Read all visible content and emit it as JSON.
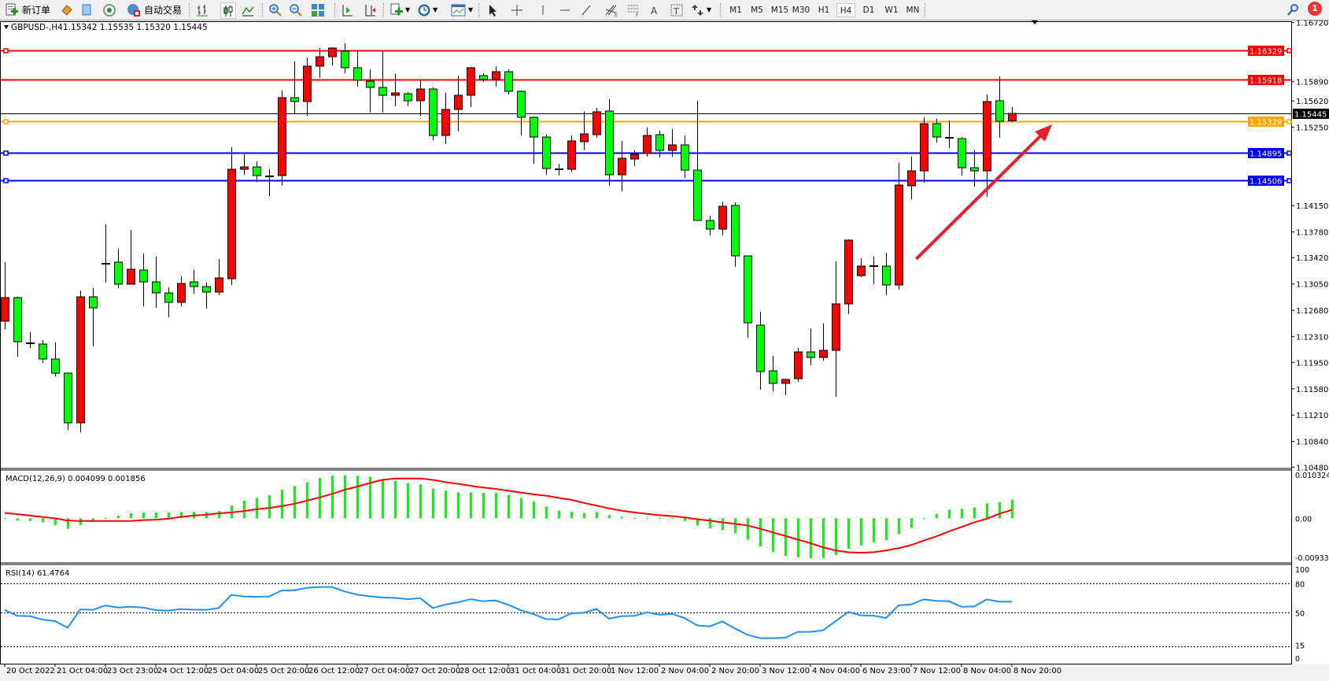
{
  "toolbar": {
    "new_order_label": "新订单",
    "auto_trading_label": "自动交易",
    "timeframes": [
      "M1",
      "M5",
      "M15",
      "M30",
      "H1",
      "H4",
      "D1",
      "W1",
      "MN"
    ],
    "active_timeframe": "H4",
    "notification_count": "1",
    "icons": [
      "new-order",
      "metaeditor",
      "navigator",
      "signals",
      "auto-trading",
      "bar-chart",
      "candlestick-chart",
      "line-chart",
      "zoom-in",
      "zoom-out",
      "tile-windows",
      "auto-scroll",
      "chart-shift",
      "indicators",
      "periods",
      "templates",
      "cursor",
      "crosshair",
      "vertical-line",
      "horizontal-line",
      "trend-line",
      "fibonacci-fan",
      "fibonacci-retracement",
      "text",
      "text-label",
      "arrows",
      "search",
      "notifications"
    ]
  },
  "chart_header": {
    "symbol": "GBPUSD-,H4",
    "ohlc": "1.15342 1.15535 1.15320 1.15445"
  },
  "chart_data": [
    {
      "type": "candlestick",
      "symbol": "GBPUSD-",
      "timeframe": "H4",
      "bull_color": "#ff0000",
      "bear_color": "#00ff00",
      "ylim": [
        1.1048,
        1.1672
      ],
      "price_ticks": [
        "1.16720",
        "1.15890",
        "1.15620",
        "1.15250",
        "1.14150",
        "1.13780",
        "1.13420",
        "1.13050",
        "1.12680",
        "1.12310",
        "1.11950",
        "1.11580",
        "1.11210",
        "1.10840",
        "1.10480"
      ],
      "label_every_bars": 4,
      "x_tick_labels": [
        "20 Oct 2022",
        "21 Oct 04:00",
        "23 Oct 23:00",
        "24 Oct 12:00",
        "25 Oct 04:00",
        "25 Oct 20:00",
        "26 Oct 12:00",
        "27 Oct 04:00",
        "27 Oct 20:00",
        "28 Oct 12:00",
        "31 Oct 04:00",
        "31 Oct 20:00",
        "1 Nov 12:00",
        "2 Nov 04:00",
        "2 Nov 20:00",
        "3 Nov 12:00",
        "4 Nov 04:00",
        "6 Nov 23:00",
        "7 Nov 12:00",
        "8 Nov 04:00",
        "8 Nov 20:00"
      ],
      "candles_ohlc": [
        [
          1.12528,
          1.13356,
          1.12417,
          1.12859
        ],
        [
          1.12859,
          1.1287,
          1.1203,
          1.1224
        ],
        [
          1.12218,
          1.12373,
          1.12152,
          1.12218
        ],
        [
          1.12207,
          1.12262,
          1.11942,
          1.11997
        ],
        [
          1.11997,
          1.12229,
          1.11754,
          1.11798
        ],
        [
          1.11798,
          1.11809,
          1.11003,
          1.11102
        ],
        [
          1.11102,
          1.12959,
          1.1097,
          1.1287
        ],
        [
          1.1287,
          1.12992,
          1.12174,
          1.12715
        ],
        [
          1.13334,
          1.13887,
          1.13069,
          1.13334
        ],
        [
          1.13356,
          1.13544,
          1.12992,
          1.13047
        ],
        [
          1.13047,
          1.13809,
          1.13047,
          1.13257
        ],
        [
          1.13246,
          1.13478,
          1.12738,
          1.1308
        ],
        [
          1.1308,
          1.13434,
          1.12715,
          1.12925
        ],
        [
          1.12925,
          1.13003,
          1.12583,
          1.12793
        ],
        [
          1.12793,
          1.13157,
          1.12738,
          1.13058
        ],
        [
          1.1308,
          1.13246,
          1.12914,
          1.13014
        ],
        [
          1.13014,
          1.13069,
          1.12704,
          1.12936
        ],
        [
          1.12936,
          1.13401,
          1.12892,
          1.13135
        ],
        [
          1.13124,
          1.1497,
          1.13036,
          1.1466
        ],
        [
          1.1466,
          1.1487,
          1.14583,
          1.14693
        ],
        [
          1.14693,
          1.14771,
          1.14483,
          1.14572
        ],
        [
          1.14561,
          1.1466,
          1.14285,
          1.14561
        ],
        [
          1.14572,
          1.15765,
          1.14428,
          1.15666
        ],
        [
          1.15666,
          1.16174,
          1.15445,
          1.15611
        ],
        [
          1.15611,
          1.16229,
          1.15412,
          1.16108
        ],
        [
          1.16108,
          1.16362,
          1.15942,
          1.1624
        ],
        [
          1.1624,
          1.16373,
          1.16119,
          1.16362
        ],
        [
          1.16318,
          1.16428,
          1.16008,
          1.16086
        ],
        [
          1.16086,
          1.16318,
          1.1582,
          1.15909
        ],
        [
          1.15898,
          1.16064,
          1.15456,
          1.15809
        ],
        [
          1.15809,
          1.16318,
          1.15456,
          1.15699
        ],
        [
          1.15699,
          1.15997,
          1.15544,
          1.15732
        ],
        [
          1.15721,
          1.15743,
          1.15544,
          1.15622
        ],
        [
          1.15622,
          1.15909,
          1.15412,
          1.15787
        ],
        [
          1.15787,
          1.15809,
          1.15069,
          1.15135
        ],
        [
          1.15135,
          1.15732,
          1.15014,
          1.155
        ],
        [
          1.155,
          1.15975,
          1.15191,
          1.15699
        ],
        [
          1.15699,
          1.16097,
          1.15533,
          1.16086
        ],
        [
          1.15975,
          1.16008,
          1.15887,
          1.1592
        ],
        [
          1.1592,
          1.16108,
          1.1582,
          1.1603
        ],
        [
          1.1603,
          1.16064,
          1.1571,
          1.15754
        ],
        [
          1.15754,
          1.15765,
          1.15135,
          1.1539
        ],
        [
          1.1539,
          1.15401,
          1.14738,
          1.15113
        ],
        [
          1.15113,
          1.15146,
          1.14583,
          1.14671
        ],
        [
          1.1466,
          1.14738,
          1.14572,
          1.1466
        ],
        [
          1.1466,
          1.15135,
          1.14627,
          1.15058
        ],
        [
          1.15047,
          1.15467,
          1.14925,
          1.15157
        ],
        [
          1.15146,
          1.15522,
          1.15102,
          1.15467
        ],
        [
          1.15478,
          1.15644,
          1.14428,
          1.14583
        ],
        [
          1.14583,
          1.15058,
          1.14351,
          1.14815
        ],
        [
          1.14804,
          1.14925,
          1.14704,
          1.1487
        ],
        [
          1.14881,
          1.15246,
          1.14837,
          1.15135
        ],
        [
          1.15146,
          1.15202,
          1.14826,
          1.14925
        ],
        [
          1.14925,
          1.15224,
          1.14837,
          1.15003
        ],
        [
          1.15003,
          1.15135,
          1.14539,
          1.14649
        ],
        [
          1.14649,
          1.15622,
          1.13942,
          1.13942
        ],
        [
          1.13942,
          1.14008,
          1.13732,
          1.1382
        ],
        [
          1.1382,
          1.14207,
          1.13732,
          1.14141
        ],
        [
          1.14152,
          1.14196,
          1.1329,
          1.13445
        ],
        [
          1.13445,
          1.13445,
          1.12296,
          1.12505
        ],
        [
          1.12472,
          1.1266,
          1.11566,
          1.1182
        ],
        [
          1.11831,
          1.12041,
          1.11544,
          1.11655
        ],
        [
          1.11655,
          1.11721,
          1.11489,
          1.1171
        ],
        [
          1.11721,
          1.12152,
          1.11677,
          1.12097
        ],
        [
          1.12097,
          1.12428,
          1.11909,
          1.12019
        ],
        [
          1.12019,
          1.12494,
          1.11975,
          1.12119
        ],
        [
          1.12119,
          1.13367,
          1.11467,
          1.12771
        ],
        [
          1.12771,
          1.13677,
          1.12627,
          1.13666
        ],
        [
          1.13168,
          1.13412,
          1.13146,
          1.13301
        ],
        [
          1.13301,
          1.13434,
          1.13047,
          1.13301
        ],
        [
          1.13301,
          1.13489,
          1.12892,
          1.13036
        ],
        [
          1.13036,
          1.14749,
          1.1297,
          1.14439
        ],
        [
          1.14428,
          1.14837,
          1.1424,
          1.14638
        ],
        [
          1.14638,
          1.1539,
          1.14472,
          1.15301
        ],
        [
          1.15301,
          1.15367,
          1.15036,
          1.15113
        ],
        [
          1.15102,
          1.15345,
          1.14959,
          1.15091
        ],
        [
          1.15091,
          1.15113,
          1.14572,
          1.14682
        ],
        [
          1.14682,
          1.14925,
          1.14417,
          1.14638
        ],
        [
          1.14638,
          1.1571,
          1.14273,
          1.15611
        ],
        [
          1.15622,
          1.15964,
          1.15102,
          1.15334
        ],
        [
          1.15342,
          1.15535,
          1.1532,
          1.15445
        ]
      ],
      "horizontal_lines": [
        {
          "price": 1.16329,
          "label": "1.16329",
          "color": "#ff0000",
          "marker": true
        },
        {
          "price": 1.15918,
          "label": "1.15918",
          "color": "#ff0000",
          "marker": false
        },
        {
          "price": 1.15445,
          "label": "1.15445",
          "color": "#000000",
          "marker": false
        },
        {
          "price": 1.15329,
          "label": "1.15329",
          "color": "#ffa500",
          "marker": true
        },
        {
          "price": 1.14895,
          "label": "1.14895",
          "color": "#0000ff",
          "marker": true
        },
        {
          "price": 1.14506,
          "label": "1.14506",
          "color": "#0000ff",
          "marker": true
        }
      ],
      "annotation_arrow": {
        "from_bar": 72.4,
        "from_price": 1.13401,
        "to_bar": 83.2,
        "to_price": 1.1529,
        "color": "#e8202a"
      }
    },
    {
      "type": "bar+line",
      "title": "MACD(12,26,9) 0.004099 0.001856",
      "ylim": [
        -0.009332,
        0.010324
      ],
      "tick_labels": [
        "0.010324",
        "0.00",
        "-0.009332"
      ],
      "histogram_color": "#00ff00",
      "signal_color": "#ff0000",
      "histogram": [
        -0.0001,
        -0.0005,
        -0.0006,
        -0.0009,
        -0.0015,
        -0.0023,
        -0.0015,
        -0.0005,
        0.0001,
        0.0006,
        0.0011,
        0.0013,
        0.0013,
        0.0013,
        0.0014,
        0.0014,
        0.0014,
        0.0016,
        0.0028,
        0.0039,
        0.0045,
        0.0051,
        0.0063,
        0.0071,
        0.008,
        0.0089,
        0.0094,
        0.0095,
        0.0094,
        0.0092,
        0.0087,
        0.0083,
        0.0078,
        0.0075,
        0.0066,
        0.0061,
        0.0057,
        0.0057,
        0.0056,
        0.0056,
        0.0052,
        0.0045,
        0.0037,
        0.0026,
        0.0017,
        0.0014,
        0.0012,
        0.0014,
        0.0007,
        0.0003,
        0.0001,
        0.0001,
        0.0001,
        0.0001,
        -0.0006,
        -0.0016,
        -0.0022,
        -0.0026,
        -0.0033,
        -0.0047,
        -0.0062,
        -0.0074,
        -0.0083,
        -0.0086,
        -0.0088,
        -0.0088,
        -0.0081,
        -0.0067,
        -0.006,
        -0.0053,
        -0.0048,
        -0.0034,
        -0.0021,
        -0.0002,
        0.001,
        0.0019,
        0.0021,
        0.0024,
        0.0033,
        0.0036,
        0.004099
      ],
      "signal": [
        0.0012,
        0.0009,
        0.0006,
        0.0003,
        0.0,
        -0.0005,
        -0.0006,
        -0.0006,
        -0.0006,
        -0.0006,
        -0.0006,
        -0.0004,
        -0.0003,
        -0.0001,
        0.0003,
        0.0006,
        0.0008,
        0.0011,
        0.0013,
        0.0016,
        0.002,
        0.0023,
        0.0027,
        0.0032,
        0.0039,
        0.0046,
        0.0054,
        0.0063,
        0.007,
        0.0078,
        0.0085,
        0.0088,
        0.0088,
        0.0088,
        0.0085,
        0.008,
        0.0076,
        0.0072,
        0.0068,
        0.0065,
        0.0061,
        0.0057,
        0.0053,
        0.005,
        0.0045,
        0.0041,
        0.0034,
        0.0028,
        0.0022,
        0.0017,
        0.0013,
        0.001,
        0.0007,
        0.0005,
        0.0002,
        -0.0002,
        -0.0005,
        -0.0009,
        -0.0012,
        -0.0016,
        -0.0023,
        -0.0031,
        -0.0039,
        -0.0047,
        -0.0055,
        -0.0064,
        -0.0071,
        -0.0075,
        -0.0076,
        -0.0075,
        -0.0071,
        -0.0066,
        -0.0059,
        -0.0049,
        -0.004,
        -0.0029,
        -0.0019,
        -0.0009,
        -0.0001,
        0.001,
        0.001856
      ]
    },
    {
      "type": "line",
      "title": "RSI(14) 61.4764",
      "ylim": [
        0,
        100
      ],
      "levels": [
        80,
        50,
        15
      ],
      "tick_labels": [
        "100",
        "80",
        "50",
        "15",
        "0"
      ],
      "line_color": "#1e90ff",
      "values": [
        53,
        46.8,
        46.5,
        43,
        41.4,
        34.6,
        53.5,
        53,
        57.6,
        55.4,
        56.2,
        55.4,
        52.7,
        52.2,
        53.8,
        53.2,
        53,
        54.9,
        68.4,
        66.8,
        66.5,
        66.8,
        73,
        73.2,
        75.7,
        76.5,
        76.5,
        71.9,
        68.6,
        67,
        65.7,
        65.4,
        64,
        65.1,
        54.9,
        58.4,
        60.8,
        64,
        61.9,
        62.7,
        58.1,
        52.7,
        48.6,
        43.5,
        43.2,
        49.5,
        50,
        54,
        44,
        46.5,
        46.8,
        50.5,
        48.1,
        48.9,
        44.6,
        37,
        35.9,
        41.1,
        33.8,
        27.3,
        23.8,
        23.8,
        24.3,
        30.3,
        30.3,
        31.9,
        41.4,
        50.8,
        47.3,
        47,
        44.6,
        57.6,
        58.6,
        63.8,
        62.2,
        61.9,
        56.2,
        56.5,
        63.8,
        61.4,
        61.4764
      ]
    }
  ]
}
